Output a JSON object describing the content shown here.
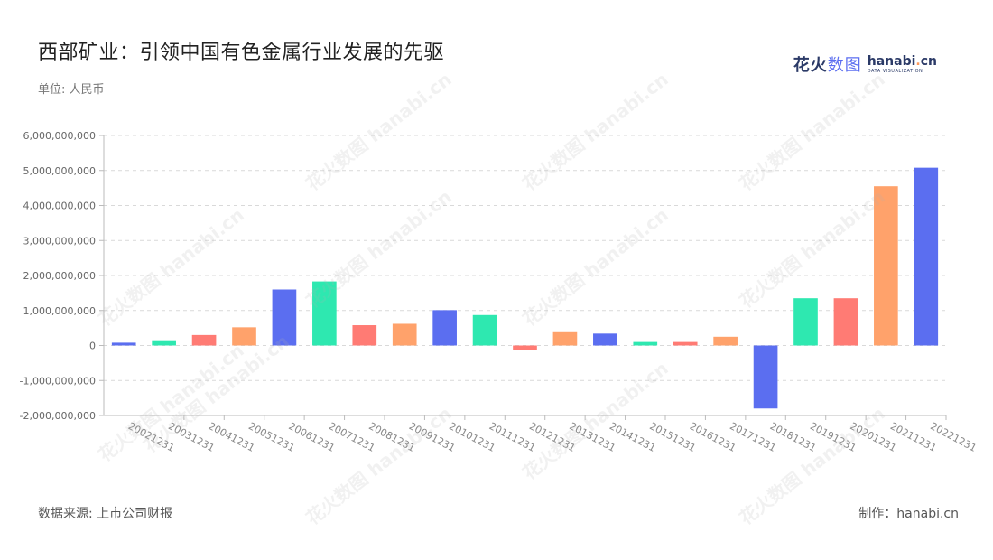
{
  "header": {
    "title": "西部矿业：引领中国有色金属行业发展的先驱",
    "unit": "单位: 人民币"
  },
  "brand": {
    "cn_bold": "花火",
    "cn_light": "数图",
    "en_main": "hanabi",
    "en_dot": ".",
    "en_tld": "cn",
    "en_sub": "DATA VISUALIZATION"
  },
  "footer": {
    "source": "数据来源: 上市公司财报",
    "maker": "制作：hanabi.cn"
  },
  "watermark": "花火数图 hanabi.cn",
  "colors": {
    "blue": "#5b6ef0",
    "green": "#2ee8b0",
    "red": "#ff7b74",
    "orange": "#ffa26b"
  },
  "chart_data": {
    "type": "bar",
    "categories": [
      "20021231",
      "20031231",
      "20041231",
      "20051231",
      "20061231",
      "20071231",
      "20081231",
      "20091231",
      "20101231",
      "20111231",
      "20121231",
      "20131231",
      "20141231",
      "20151231",
      "20161231",
      "20171231",
      "20181231",
      "20191231",
      "20201231",
      "20211231",
      "20221231"
    ],
    "values": [
      80000000,
      150000000,
      300000000,
      520000000,
      1600000000,
      1830000000,
      580000000,
      620000000,
      1010000000,
      870000000,
      -130000000,
      380000000,
      340000000,
      100000000,
      100000000,
      250000000,
      -1800000000,
      1350000000,
      1350000000,
      4550000000,
      5080000000
    ],
    "bar_colors": [
      "blue",
      "green",
      "red",
      "orange",
      "blue",
      "green",
      "red",
      "orange",
      "blue",
      "green",
      "red",
      "orange",
      "blue",
      "green",
      "red",
      "orange",
      "blue",
      "green",
      "red",
      "orange",
      "blue"
    ],
    "ylim": [
      -2000000000,
      6000000000
    ],
    "yticks": [
      6000000000,
      5000000000,
      4000000000,
      3000000000,
      2000000000,
      1000000000,
      0,
      -1000000000,
      -2000000000
    ],
    "ytick_labels": [
      "6,000,000,000",
      "5,000,000,000",
      "4,000,000,000",
      "3,000,000,000",
      "2,000,000,000",
      "1,000,000,000",
      "0",
      "-1,000,000,000",
      "-2,000,000,000"
    ],
    "grid": "horizontal-dashed",
    "xlabel": "",
    "ylabel": ""
  }
}
